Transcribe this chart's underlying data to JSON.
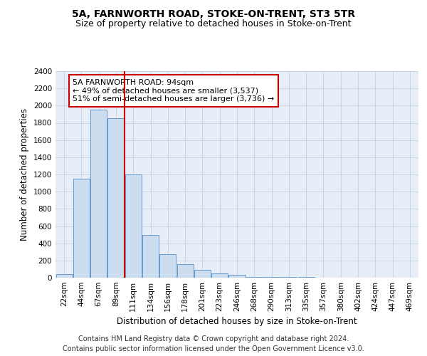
{
  "title": "5A, FARNWORTH ROAD, STOKE-ON-TRENT, ST3 5TR",
  "subtitle": "Size of property relative to detached houses in Stoke-on-Trent",
  "xlabel": "Distribution of detached houses by size in Stoke-on-Trent",
  "ylabel": "Number of detached properties",
  "bar_labels": [
    "22sqm",
    "44sqm",
    "67sqm",
    "89sqm",
    "111sqm",
    "134sqm",
    "156sqm",
    "178sqm",
    "201sqm",
    "223sqm",
    "246sqm",
    "268sqm",
    "290sqm",
    "313sqm",
    "335sqm",
    "357sqm",
    "380sqm",
    "402sqm",
    "424sqm",
    "447sqm",
    "469sqm"
  ],
  "bar_values": [
    40,
    1150,
    1950,
    1850,
    1200,
    500,
    270,
    160,
    90,
    50,
    30,
    10,
    10,
    5,
    5,
    3,
    3,
    2,
    2,
    1,
    1
  ],
  "bar_color": "#ccddf0",
  "bar_edgecolor": "#6699cc",
  "vline_x_idx": 3.5,
  "vline_color": "#cc0000",
  "annotation_text": "5A FARNWORTH ROAD: 94sqm\n← 49% of detached houses are smaller (3,537)\n51% of semi-detached houses are larger (3,736) →",
  "annotation_box_facecolor": "white",
  "annotation_box_edgecolor": "#cc0000",
  "ylim": [
    0,
    2400
  ],
  "yticks": [
    0,
    200,
    400,
    600,
    800,
    1000,
    1200,
    1400,
    1600,
    1800,
    2000,
    2200,
    2400
  ],
  "grid_color": "#c8d4e8",
  "bg_color": "#e8eef8",
  "footer": "Contains HM Land Registry data © Crown copyright and database right 2024.\nContains public sector information licensed under the Open Government Licence v3.0.",
  "title_fontsize": 10,
  "subtitle_fontsize": 9,
  "axis_label_fontsize": 8.5,
  "tick_fontsize": 7.5,
  "annot_fontsize": 8,
  "footer_fontsize": 7
}
